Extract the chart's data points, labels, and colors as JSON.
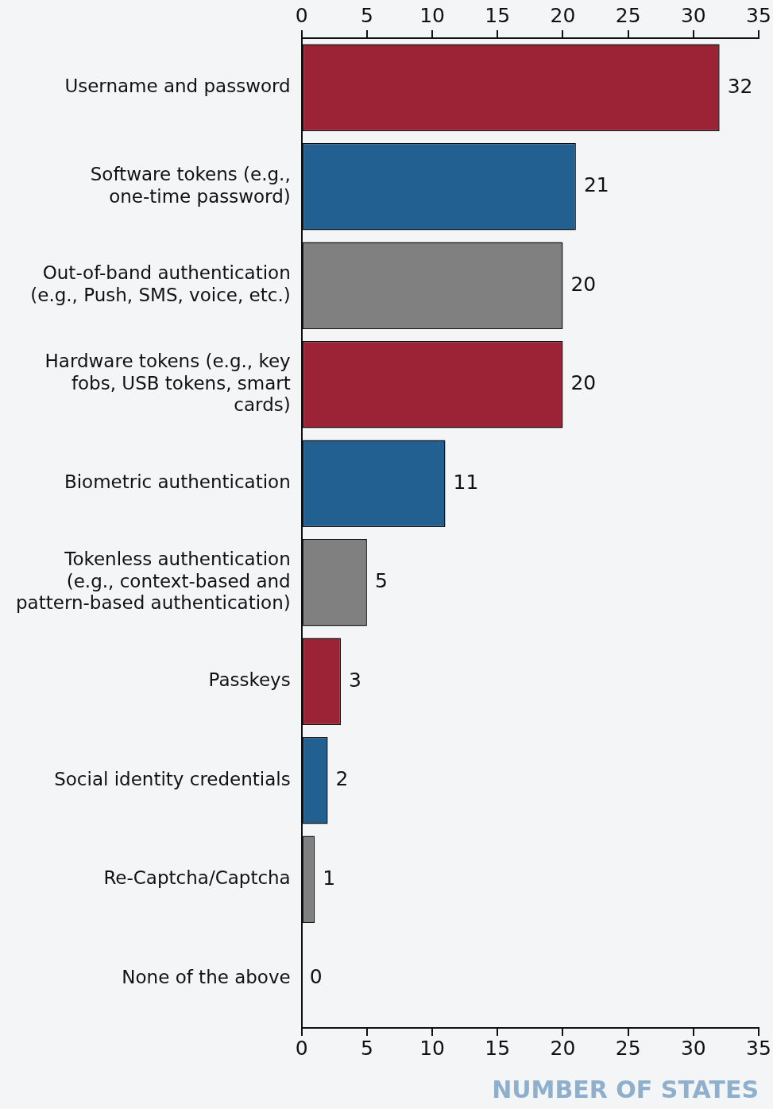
{
  "chart_data": {
    "type": "bar",
    "orientation": "horizontal",
    "xlabel": "NUMBER OF STATES",
    "categories": [
      "Username and password",
      "Software tokens (e.g., one-time password)",
      "Out-of-band authentication (e.g., Push, SMS, voice, etc.)",
      "Hardware tokens (e.g., key fobs, USB tokens, smart cards)",
      "Biometric authentication",
      "Tokenless authentication (e.g., context-based and pattern-based authentication)",
      "Passkeys",
      "Social identity credentials",
      "Re-Captcha/Captcha",
      "None of the above"
    ],
    "values": [
      32,
      21,
      20,
      20,
      11,
      5,
      3,
      2,
      1,
      0
    ],
    "colors": [
      "#9b2335",
      "#236092",
      "#808080",
      "#9b2335",
      "#236092",
      "#808080",
      "#9b2335",
      "#236092",
      "#808080",
      "#9b2335"
    ],
    "xlim": [
      0,
      35
    ],
    "xticks": [
      0,
      5,
      10,
      15,
      20,
      25,
      30,
      35
    ],
    "x2lim": [
      0,
      35
    ],
    "x2ticks": [
      0,
      5,
      10,
      15,
      20,
      25,
      30,
      35
    ],
    "data_labels": true,
    "grid": false,
    "legend": false
  }
}
